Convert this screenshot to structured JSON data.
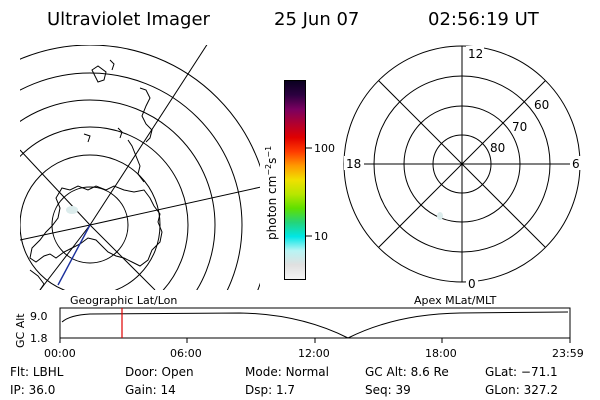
{
  "header": {
    "instrument": "Ultraviolet Imager",
    "date": "25 Jun 07",
    "time": "02:56:19 UT"
  },
  "colorbar": {
    "unit_main": "photon cm",
    "unit_exp1": "−2",
    "unit_s": "s",
    "unit_exp2": "−1",
    "tick_high": "100",
    "tick_low": "10",
    "colors": [
      "#f4f4f4",
      "#e0e0e0",
      "#b8f4f4",
      "#00e6e6",
      "#24d47a",
      "#5fe000",
      "#b8e600",
      "#f0e000",
      "#ff9a00",
      "#ff3c00",
      "#e00000",
      "#b00030",
      "#7a0060",
      "#2c0040",
      "#0a0020"
    ]
  },
  "left_map": {
    "label": "Geographic Lat/Lon"
  },
  "right_map": {
    "label": "Apex MLat/MLT",
    "mlt_labels": {
      "top": "12",
      "right": "6",
      "bottom": "0",
      "left": "18"
    },
    "lat_labels": [
      "60",
      "70",
      "80"
    ]
  },
  "timeline": {
    "ylabel": "GC Alt",
    "y_ticks": [
      "9.0",
      "1.8"
    ],
    "x_ticks": [
      "00:00",
      "06:00",
      "12:00",
      "18:00",
      "23:59"
    ],
    "marker_time": "02:56"
  },
  "status": {
    "row1": [
      {
        "label": "Flt:",
        "value": "LBHL"
      },
      {
        "label": "Door:",
        "value": "Open"
      },
      {
        "label": "Mode:",
        "value": "Normal"
      },
      {
        "label": "GC Alt:",
        "value": "8.6 Re"
      },
      {
        "label": "GLat:",
        "value": "−71.1"
      }
    ],
    "row2": [
      {
        "label": "IP:",
        "value": "36.0"
      },
      {
        "label": "Gain:",
        "value": "14"
      },
      {
        "label": "Dsp:",
        "value": "1.7"
      },
      {
        "label": "Seq:",
        "value": "39"
      },
      {
        "label": "GLon:",
        "value": "327.2"
      }
    ]
  },
  "colors": {
    "foreground": "#000000",
    "marker": "#e00000",
    "track": "#1a2f9c"
  }
}
